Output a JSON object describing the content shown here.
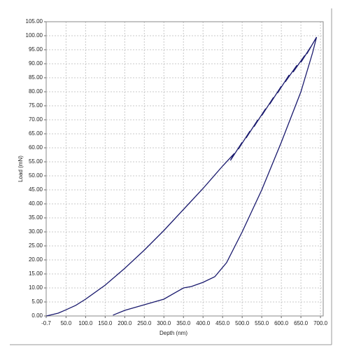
{
  "chart_data": {
    "type": "line",
    "x_label": "Depth (nm)",
    "y_label": "Load (mN)",
    "x": [
      0,
      30,
      50,
      75,
      100,
      150,
      200,
      250,
      300,
      350,
      400,
      450,
      480,
      470,
      500,
      490,
      520,
      510,
      540,
      530,
      560,
      550,
      580,
      570,
      600,
      590,
      620,
      610,
      640,
      630,
      660,
      650,
      675,
      665,
      690,
      680,
      650,
      600,
      550,
      500,
      460,
      430,
      400,
      370,
      350,
      300,
      250,
      200,
      170
    ],
    "values": [
      0,
      1,
      2.2,
      3.8,
      6,
      11,
      17,
      23.5,
      30.5,
      38,
      45.5,
      53.5,
      58,
      55.5,
      62,
      59.5,
      66,
      63.5,
      70,
      67.5,
      74,
      71.5,
      78,
      75.5,
      82,
      79.5,
      86,
      83.5,
      89.5,
      87,
      93,
      90.5,
      96,
      93.5,
      99.5,
      94,
      80,
      62,
      45,
      30,
      19,
      14,
      12,
      10.5,
      10,
      6,
      4,
      2,
      0.3
    ],
    "color": "#1a1a6e",
    "xlim": [
      -0.7,
      707
    ],
    "ylim": [
      0,
      105
    ],
    "xticks": [
      -0.7,
      {
        "value": 50,
        "label": "50.0"
      },
      {
        "value": 100,
        "label": "100.0"
      },
      {
        "value": 150,
        "label": "150.0"
      },
      {
        "value": 200,
        "label": "200.0"
      },
      {
        "value": 250,
        "label": "250.0"
      },
      {
        "value": 300,
        "label": "300.0"
      },
      {
        "value": 350,
        "label": "350.0"
      },
      {
        "value": 400,
        "label": "400.0"
      },
      {
        "value": 450,
        "label": "450.0"
      },
      {
        "value": 500,
        "label": "500.0"
      },
      {
        "value": 550,
        "label": "550.0"
      },
      {
        "value": 600,
        "label": "600.0"
      },
      {
        "value": 650,
        "label": "650.0"
      },
      {
        "value": 700,
        "label": "700.0"
      }
    ],
    "yticks": [
      {
        "value": 0,
        "label": "0.00"
      },
      {
        "value": 5,
        "label": "5.00"
      },
      {
        "value": 10,
        "label": "10.00"
      },
      {
        "value": 15,
        "label": "15.00"
      },
      {
        "value": 20,
        "label": "20.00"
      },
      {
        "value": 25,
        "label": "25.00"
      },
      {
        "value": 30,
        "label": "30.00"
      },
      {
        "value": 35,
        "label": "35.00"
      },
      {
        "value": 40,
        "label": "40.00"
      },
      {
        "value": 45,
        "label": "45.00"
      },
      {
        "value": 50,
        "label": "50.00"
      },
      {
        "value": 55,
        "label": "55.00"
      },
      {
        "value": 60,
        "label": "60.00"
      },
      {
        "value": 65,
        "label": "65.00"
      },
      {
        "value": 70,
        "label": "70.00"
      },
      {
        "value": 75,
        "label": "75.00"
      },
      {
        "value": 80,
        "label": "80.00"
      },
      {
        "value": 85,
        "label": "85.00"
      },
      {
        "value": 90,
        "label": "90.00"
      },
      {
        "value": 95,
        "label": "95.00"
      },
      {
        "value": 100,
        "label": "100.00"
      },
      {
        "value": 105,
        "label": "105.00"
      }
    ],
    "grid": true
  }
}
